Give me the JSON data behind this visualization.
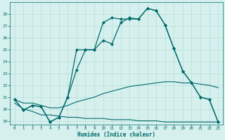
{
  "xlabel": "Humidex (Indice chaleur)",
  "background_color": "#d6f0ee",
  "grid_color": "#b8ddd8",
  "line_color": "#006b6b",
  "xlim": [
    -0.5,
    23.5
  ],
  "ylim": [
    18.7,
    29.0
  ],
  "xticks": [
    0,
    1,
    2,
    3,
    4,
    5,
    6,
    7,
    8,
    9,
    10,
    11,
    12,
    13,
    14,
    15,
    16,
    17,
    18,
    19,
    20,
    21,
    22,
    23
  ],
  "yticks": [
    19,
    20,
    21,
    22,
    23,
    24,
    25,
    26,
    27,
    28
  ],
  "line1_x": [
    0,
    1,
    2,
    3,
    4,
    5,
    6,
    7,
    8,
    9,
    10,
    11,
    12,
    13,
    14,
    15,
    16,
    17,
    18,
    19,
    20,
    21,
    22,
    23
  ],
  "line1_y": [
    20.8,
    19.9,
    20.3,
    20.2,
    18.9,
    19.3,
    21.0,
    23.3,
    25.0,
    25.0,
    25.8,
    25.5,
    27.3,
    27.7,
    27.6,
    28.5,
    28.3,
    27.1,
    25.1,
    23.2,
    22.2,
    21.0,
    20.8,
    18.9
  ],
  "line2_x": [
    0,
    1,
    2,
    3,
    4,
    5,
    6,
    7,
    8,
    9,
    10,
    11,
    12,
    13,
    14,
    15,
    16,
    17,
    18,
    19,
    20,
    21,
    22,
    23
  ],
  "line2_y": [
    20.8,
    19.9,
    20.3,
    20.2,
    18.9,
    19.3,
    21.0,
    25.0,
    25.0,
    25.0,
    27.3,
    27.7,
    27.6,
    27.6,
    27.6,
    28.5,
    28.3,
    27.1,
    25.1,
    23.2,
    22.2,
    21.0,
    20.8,
    18.9
  ],
  "line3_x": [
    0,
    1,
    2,
    3,
    4,
    5,
    6,
    7,
    8,
    9,
    10,
    11,
    12,
    13,
    14,
    15,
    16,
    17,
    18,
    19,
    20,
    21,
    22,
    23
  ],
  "line3_y": [
    20.8,
    20.5,
    20.5,
    20.3,
    20.1,
    20.1,
    20.3,
    20.6,
    20.8,
    21.0,
    21.3,
    21.5,
    21.7,
    21.9,
    22.0,
    22.1,
    22.2,
    22.3,
    22.3,
    22.2,
    22.2,
    22.1,
    22.0,
    21.8
  ],
  "line4_x": [
    0,
    1,
    2,
    3,
    4,
    5,
    6,
    7,
    8,
    9,
    10,
    11,
    12,
    13,
    14,
    15,
    16,
    17,
    18,
    19,
    20,
    21,
    22,
    23
  ],
  "line4_y": [
    20.5,
    20.0,
    19.8,
    19.5,
    19.5,
    19.4,
    19.3,
    19.3,
    19.2,
    19.2,
    19.2,
    19.1,
    19.1,
    19.1,
    19.0,
    19.0,
    19.0,
    18.9,
    18.9,
    18.9,
    18.9,
    18.9,
    18.9,
    18.9
  ]
}
